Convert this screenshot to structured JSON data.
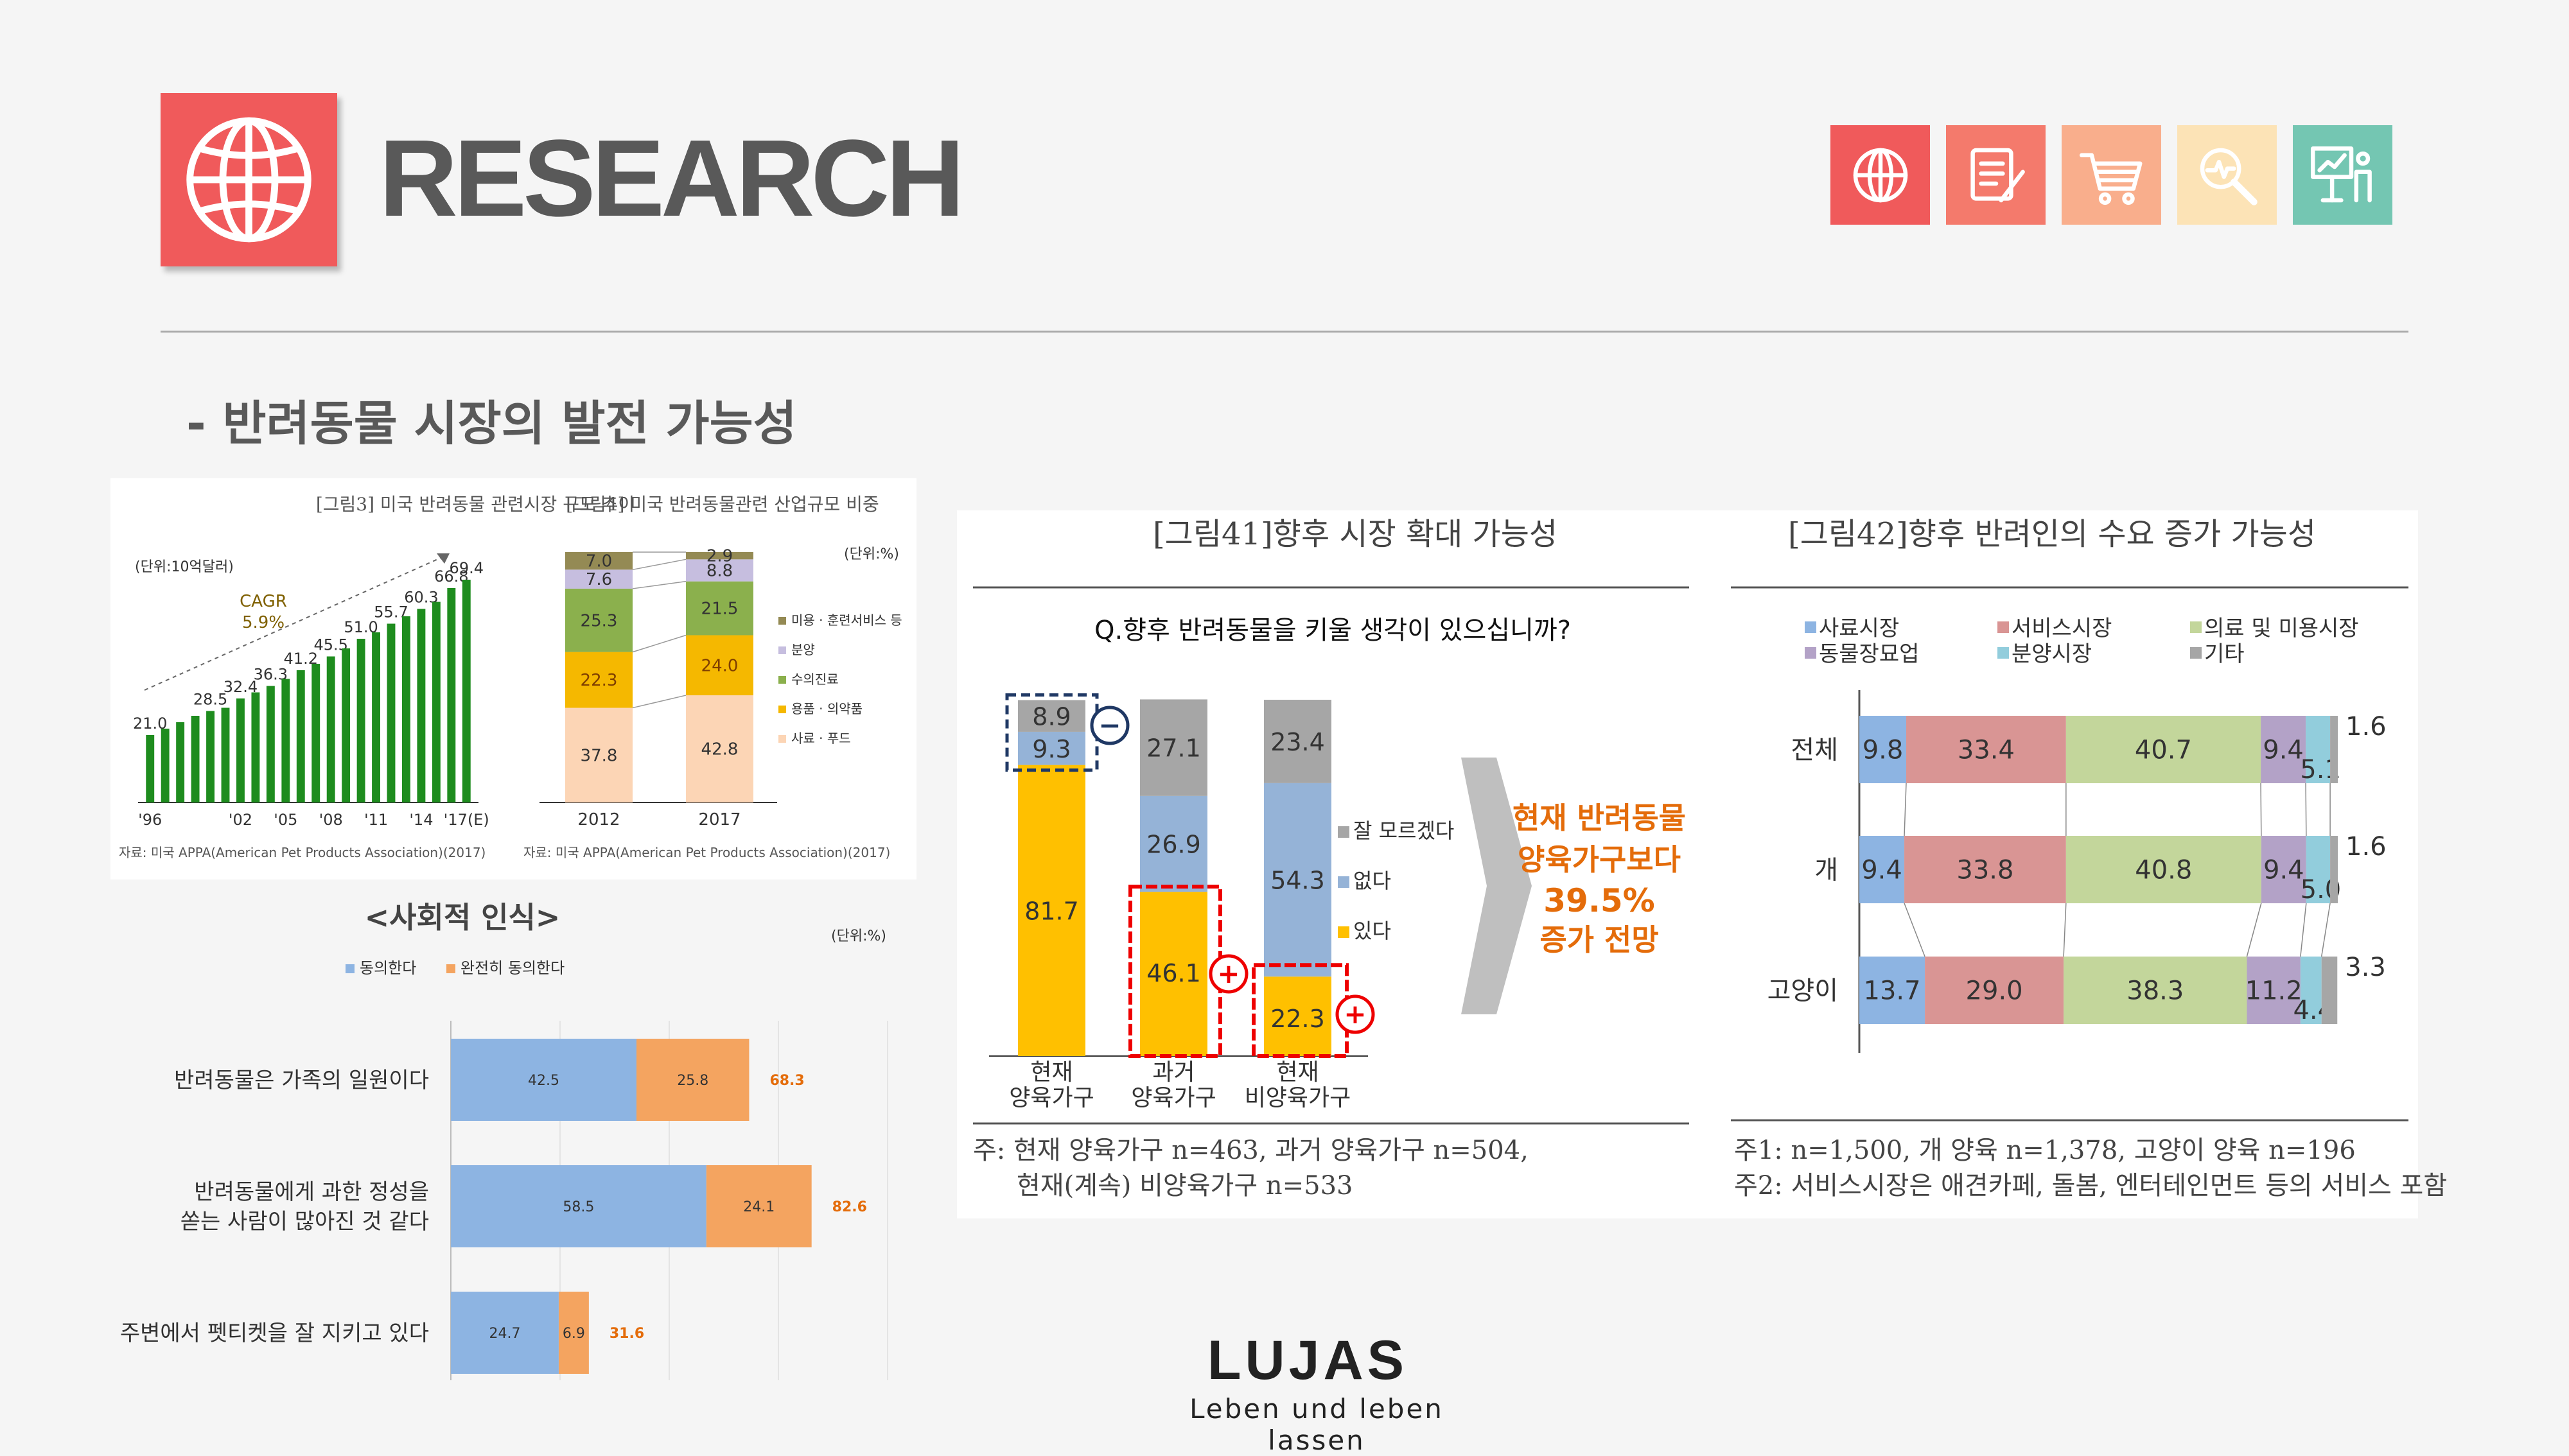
{
  "header": {
    "title": "RESEARCH",
    "subtitle": "- 반려동물 시장의 발전 가능성",
    "icons": [
      {
        "name": "globe-icon",
        "color": "#f05a5b"
      },
      {
        "name": "document-edit-icon",
        "color": "#f47a6c"
      },
      {
        "name": "cart-icon",
        "color": "#f9ae8c"
      },
      {
        "name": "analytics-search-icon",
        "color": "#fce3b6"
      },
      {
        "name": "presentation-icon",
        "color": "#74c6b2"
      }
    ]
  },
  "logo": {
    "brand": "LUJAS",
    "tagline": "Leben und leben lassen"
  },
  "chart_data": [
    {
      "id": "fig3",
      "type": "bar",
      "title": "[그림3] 미국 반려동물 관련시장 규모 추이",
      "unit": "(단위:10억달러)",
      "annotation": "CAGR 5.9%",
      "categories": [
        "'96",
        "'97",
        "'98",
        "'99",
        "'00",
        "'01",
        "'02",
        "'03",
        "'04",
        "'05",
        "'06",
        "'07",
        "'08",
        "'09",
        "'10",
        "'11",
        "'12",
        "'13",
        "'14",
        "'15",
        "'16",
        "'17(E)"
      ],
      "tick_labels": [
        "'96",
        "'02",
        "'05",
        "'08",
        "'11",
        "'14",
        "'17(E)"
      ],
      "values": [
        21.0,
        23.0,
        25.0,
        27.0,
        28.5,
        29.5,
        32.4,
        34.3,
        36.3,
        38.5,
        41.2,
        43.2,
        45.5,
        48.0,
        51.0,
        53.0,
        55.7,
        58.0,
        60.3,
        62.5,
        66.8,
        69.4
      ],
      "labeled": {
        "0": "21.0",
        "4": "28.5",
        "6": "32.4",
        "8": "36.3",
        "10": "41.2",
        "12": "45.5",
        "14": "51.0",
        "16": "55.7",
        "18": "60.3",
        "20": "66.8",
        "21": "69.4"
      },
      "ylim": [
        0,
        75
      ],
      "color": "#1e8c1e",
      "source": "자료: 미국 APPA(American Pet Products Association)(2017)"
    },
    {
      "id": "fig4",
      "type": "bar",
      "stacked": true,
      "title": "[그림4] 미국 반려동물관련 산업규모 비중",
      "unit": "(단위:%)",
      "categories": [
        "2012",
        "2017"
      ],
      "series": [
        {
          "name": "사료 · 푸드",
          "color": "#fcd5b5",
          "values": [
            37.8,
            42.8
          ]
        },
        {
          "name": "용품 · 의약품",
          "color": "#f5b800",
          "values": [
            22.3,
            24.0
          ]
        },
        {
          "name": "수의진료",
          "color": "#8bb04d",
          "values": [
            25.3,
            21.5
          ]
        },
        {
          "name": "분양",
          "color": "#c6bedf",
          "values": [
            7.6,
            8.8
          ]
        },
        {
          "name": "미용 · 훈련서비스 등",
          "color": "#948a54",
          "values": [
            7.0,
            2.9
          ]
        }
      ],
      "source": "자료: 미국 APPA(American Pet Products Association)(2017)"
    },
    {
      "id": "social",
      "type": "bar",
      "orientation": "horizontal",
      "stacked": true,
      "title": "<사회적 인식>",
      "unit": "(단위:%)",
      "categories": [
        "반려동물은 가족의 일원이다",
        "반려동물에게 과한 정성을|쏟는 사람이 많아진 것 같다",
        "주변에서 펫티켓을 잘 지키고 있다"
      ],
      "series": [
        {
          "name": "동의한다",
          "color": "#8db4e2",
          "values": [
            42.5,
            58.5,
            24.7
          ]
        },
        {
          "name": "완전히 동의한다",
          "color": "#f4a460",
          "values": [
            25.8,
            24.1,
            6.9
          ]
        }
      ],
      "totals": [
        "68.3",
        "82.6",
        "31.6"
      ],
      "xlim": [
        0,
        100
      ]
    },
    {
      "id": "fig41",
      "type": "bar",
      "stacked": true,
      "title": "[그림41]향후 시장 확대 가능성",
      "question": "Q.향후 반려동물을 키울 생각이 있으십니까?",
      "categories": [
        "현재|양육가구",
        "과거|양육가구",
        "현재|비양육가구"
      ],
      "series": [
        {
          "name": "있다",
          "color": "#ffc000",
          "values": [
            81.7,
            46.1,
            22.3
          ]
        },
        {
          "name": "없다",
          "color": "#95b3d7",
          "values": [
            9.3,
            26.9,
            54.3
          ]
        },
        {
          "name": "잘 모르겠다",
          "color": "#a6a6a6",
          "values": [
            8.9,
            27.1,
            23.4
          ]
        }
      ],
      "callout": [
        "현재 반려동물",
        "양육가구보다",
        "39.5%",
        "증가 전망"
      ],
      "note": [
        "주: 현재 양육가구 n=463, 과거 양육가구 n=504,",
        "현재(계속) 비양육가구 n=533"
      ]
    },
    {
      "id": "fig42",
      "type": "bar",
      "orientation": "horizontal",
      "stacked": true,
      "title": "[그림42]향후 반려인의 수요 증가 가능성",
      "categories": [
        "전체",
        "개",
        "고양이"
      ],
      "series": [
        {
          "name": "사료시장",
          "color": "#8db4e2",
          "values": [
            9.8,
            9.4,
            13.7
          ]
        },
        {
          "name": "서비스시장",
          "color": "#d99594",
          "values": [
            33.4,
            33.8,
            29.0
          ]
        },
        {
          "name": "의료 및 미용시장",
          "color": "#c3d69b",
          "values": [
            40.7,
            40.8,
            38.3
          ]
        },
        {
          "name": "동물장묘업",
          "color": "#b3a2c7",
          "values": [
            9.4,
            9.4,
            11.2
          ]
        },
        {
          "name": "분양시장",
          "color": "#92cddc",
          "values": [
            5.1,
            5.0,
            4.4
          ]
        },
        {
          "name": "기타",
          "color": "#a6a6a6",
          "values": [
            1.6,
            1.6,
            3.3
          ]
        }
      ],
      "note": [
        "주1: n=1,500, 개 양육 n=1,378, 고양이 양육 n=196",
        "주2: 서비스시장은 애견카페, 돌봄, 엔터테인먼트 등의 서비스 포함"
      ]
    }
  ]
}
